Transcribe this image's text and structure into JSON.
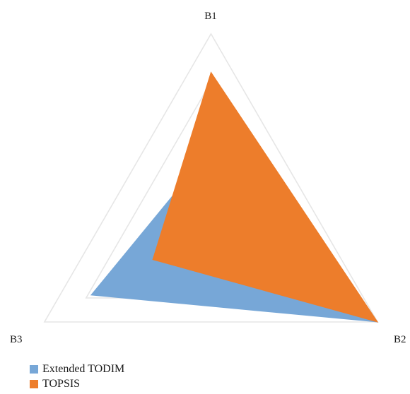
{
  "chart_data": {
    "type": "radar",
    "title": "",
    "axes": [
      "B1",
      "B2",
      "B3"
    ],
    "rmax": 1.0,
    "grid_levels": [
      0.25,
      0.5,
      0.75,
      1.0
    ],
    "grid": true,
    "legend_position": "bottom-left",
    "series": [
      {
        "name": "Extended TODIM",
        "color": "#77A7D7",
        "values": [
          0.4,
          1.0,
          0.72
        ]
      },
      {
        "name": "TOPSIS",
        "color": "#ED7D2B",
        "values": [
          0.8,
          1.0,
          0.35
        ]
      }
    ]
  }
}
